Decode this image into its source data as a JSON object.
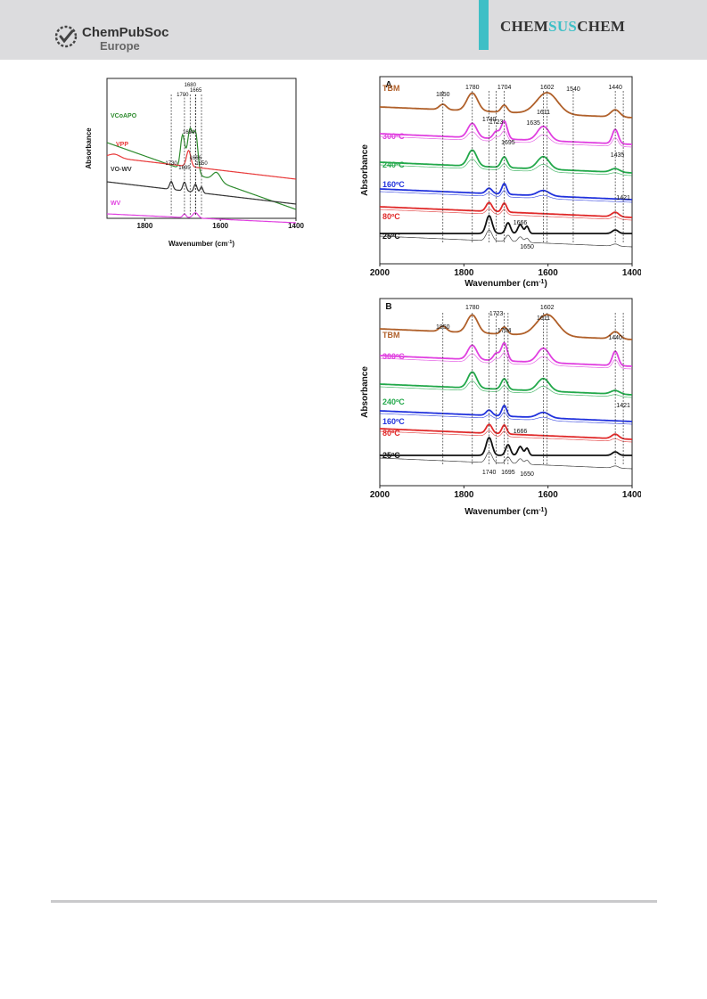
{
  "header": {
    "publisher_line1": "ChemPubSoc",
    "publisher_line2": "Europe",
    "journal": {
      "part1": "CHEM",
      "part2": "SUS",
      "part3": "CHEM"
    },
    "colors": {
      "band": "#dcdcde",
      "accent": "#3ebfc6"
    }
  },
  "chart_data": [
    {
      "type": "line",
      "panel": "left",
      "xlabel": "Wavenumber (cm",
      "xlabel_sup": "-1",
      "xlabel_close": ")",
      "ylabel": "Absorbance",
      "xlim": [
        1900,
        1400
      ],
      "x_ticks": [
        "1800",
        "1600",
        "1400"
      ],
      "series": [
        {
          "name": "VCoAPO",
          "color": "#2e8b2e"
        },
        {
          "name": "VPP",
          "color": "#e83a3a"
        },
        {
          "name": "VO-WV",
          "color": "#333333"
        },
        {
          "name": "WV",
          "color": "#e040e0"
        }
      ],
      "peak_labels": [
        "1700",
        "1680",
        "1665",
        "1684",
        "1730",
        "1695",
        "1666",
        "1650"
      ]
    },
    {
      "type": "line",
      "panel": "A",
      "xlabel": "Wavenumber (cm",
      "xlabel_sup": "-1",
      "xlabel_close": ")",
      "ylabel": "Absorbance",
      "xlim": [
        2000,
        1400
      ],
      "x_ticks": [
        "2000",
        "1800",
        "1600",
        "1400"
      ],
      "series": [
        {
          "name": "TBM",
          "color": "#b0602a"
        },
        {
          "name": "300ºC",
          "color": "#e040e0"
        },
        {
          "name": "240ºC",
          "color": "#22a84a"
        },
        {
          "name": "160ºC",
          "color": "#2233dd"
        },
        {
          "name": "80ºC",
          "color": "#e02a2a"
        },
        {
          "name": "25ºC",
          "color": "#111111"
        }
      ],
      "peak_labels": [
        "1850",
        "1780",
        "1723",
        "1704",
        "1602",
        "1540",
        "1440",
        "1740",
        "1611",
        "1635",
        "1695",
        "1435",
        "1421",
        "1666",
        "1650"
      ]
    },
    {
      "type": "line",
      "panel": "B",
      "xlabel": "Wavenumber (cm",
      "xlabel_sup": "-1",
      "xlabel_close": ")",
      "ylabel": "Absorbance",
      "xlim": [
        2000,
        1400
      ],
      "x_ticks": [
        "2000",
        "1800",
        "1600",
        "1400"
      ],
      "series": [
        {
          "name": "TBM",
          "color": "#b0602a"
        },
        {
          "name": "300ºC",
          "color": "#e040e0"
        },
        {
          "name": "240ºC",
          "color": "#22a84a"
        },
        {
          "name": "160ºC",
          "color": "#2233dd"
        },
        {
          "name": "80ºC",
          "color": "#e02a2a"
        },
        {
          "name": "25ºC",
          "color": "#111111"
        }
      ],
      "peak_labels": [
        "1780",
        "1723",
        "1602",
        "1850",
        "1704",
        "1611",
        "1440",
        "1421",
        "1666",
        "1740",
        "1695",
        "1650"
      ]
    }
  ]
}
